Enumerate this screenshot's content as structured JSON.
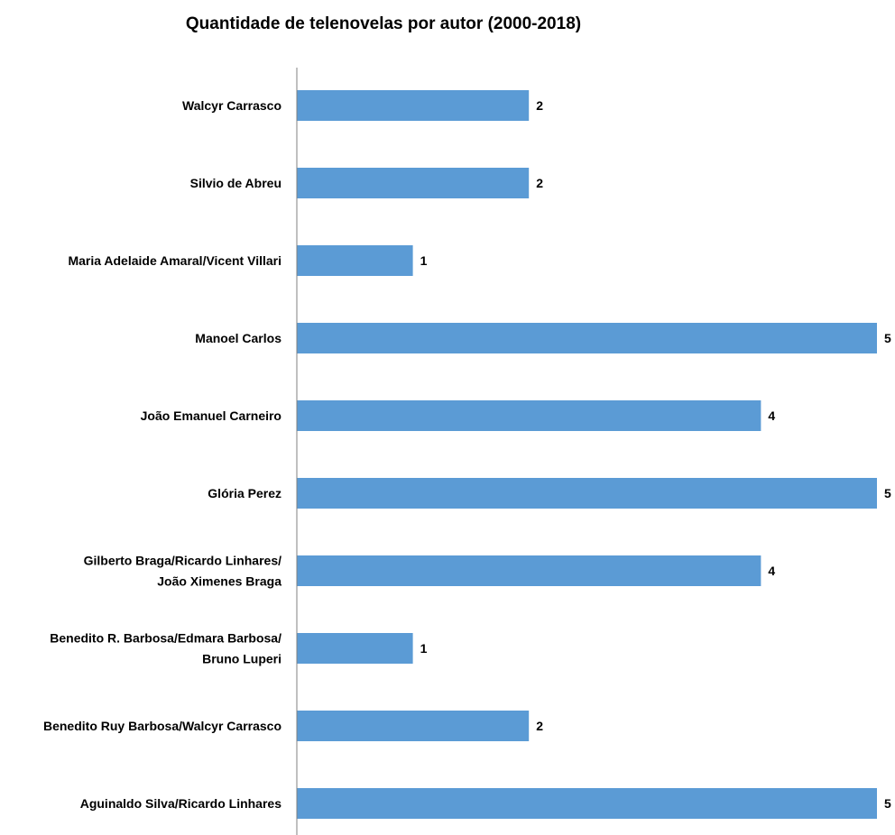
{
  "chart_data": {
    "type": "bar",
    "orientation": "horizontal",
    "title": "Quantidade de telenovelas por autor (2000-2018)",
    "categories": [
      [
        "Walcyr Carrasco"
      ],
      [
        "Silvio de Abreu"
      ],
      [
        "Maria Adelaide Amaral/Vicent Villari"
      ],
      [
        "Manoel Carlos"
      ],
      [
        "João Emanuel Carneiro"
      ],
      [
        "Glória Perez"
      ],
      [
        "Gilberto Braga/Ricardo Linhares/",
        "João Ximenes Braga"
      ],
      [
        "Benedito R. Barbosa/Edmara Barbosa/",
        "Bruno Luperi"
      ],
      [
        "Benedito Ruy Barbosa/Walcyr Carrasco"
      ],
      [
        "Aguinaldo Silva/Ricardo Linhares"
      ]
    ],
    "values": [
      2,
      2,
      1,
      5,
      4,
      5,
      4,
      1,
      2,
      5
    ],
    "xlim": [
      0,
      5
    ],
    "data_labels": true,
    "grid": false,
    "legend": "none",
    "bar_color": "#5B9BD5",
    "axis_color": "#808080"
  }
}
